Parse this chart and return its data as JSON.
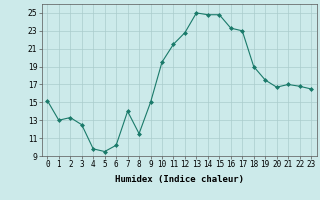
{
  "x": [
    0,
    1,
    2,
    3,
    4,
    5,
    6,
    7,
    8,
    9,
    10,
    11,
    12,
    13,
    14,
    15,
    16,
    17,
    18,
    19,
    20,
    21,
    22,
    23
  ],
  "y": [
    15.2,
    13.0,
    13.3,
    12.5,
    9.8,
    9.5,
    10.2,
    14.0,
    11.5,
    15.0,
    19.5,
    21.5,
    22.8,
    25.0,
    24.8,
    24.8,
    23.3,
    23.0,
    19.0,
    17.5,
    16.7,
    17.0,
    16.8,
    16.5
  ],
  "line_color": "#1a7a6a",
  "marker": "D",
  "marker_size": 2,
  "bg_color": "#cceaea",
  "grid_color": "#aacccc",
  "xlabel": "Humidex (Indice chaleur)",
  "ylim": [
    9,
    26
  ],
  "xlim": [
    -0.5,
    23.5
  ],
  "yticks": [
    9,
    11,
    13,
    15,
    17,
    19,
    21,
    23,
    25
  ],
  "xtick_labels": [
    "0",
    "1",
    "2",
    "3",
    "4",
    "5",
    "6",
    "7",
    "8",
    "9",
    "10",
    "11",
    "12",
    "13",
    "14",
    "15",
    "16",
    "17",
    "18",
    "19",
    "20",
    "21",
    "22",
    "23"
  ],
  "label_fontsize": 6.5,
  "tick_fontsize": 5.5
}
